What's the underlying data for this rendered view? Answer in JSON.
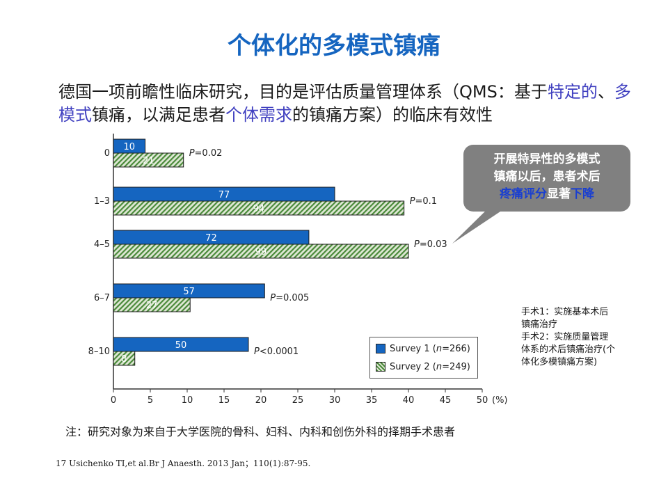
{
  "title": "个体化的多模式镇痛",
  "intro": {
    "p1": "德国一项前瞻性临床研究，目的是评估质量管理体系（QMS：基于",
    "h1": "特定的",
    "p2": "、",
    "h2": "多模式",
    "p3": "镇痛，以满足患者",
    "h3": "个体需求",
    "p4": "的镇痛方案）的临床有效性"
  },
  "callout": {
    "line1": "开展特异性的多模式",
    "line2": "镇痛以后，患者术后",
    "line3_blue": "疼痛评分",
    "line3_white": "显著",
    "line3_blue2": "下降"
  },
  "note": {
    "line1": "手术1：实施基本术后",
    "line2": "镇痛治疗",
    "line3": "手术2：实施质量管理",
    "line4": "体系的术后镇痛治疗(个",
    "line5": "体化多模镇痛方案)"
  },
  "footnote": "注：研究对象为来自于大学医院的骨科、妇科、内科和创伤外科的择期手术患者",
  "reference": "17 Usichenko TI,et al.Br J Anaesth. 2013 Jan；110(1):87-95.",
  "colors": {
    "accent": "#1565c0",
    "survey1": "#1565c0",
    "survey2": "#4a8a3a",
    "callout_bg": "#808080"
  },
  "chart_data": {
    "type": "bar",
    "orientation": "horizontal",
    "categories": [
      "0",
      "1–3",
      "4–5",
      "6–7",
      "8–10"
    ],
    "series": [
      {
        "name": "Survey 1 (n=266)",
        "values": [
          4.3,
          30,
          26.5,
          20.5,
          18.3
        ],
        "labels": [
          "10",
          "77",
          "72",
          "57",
          "50"
        ]
      },
      {
        "name": "Survey 2 (n=249)",
        "values": [
          9.5,
          39.4,
          40,
          10.4,
          2.9
        ],
        "labels": [
          "21",
          "94",
          "99",
          "27",
          "8"
        ]
      }
    ],
    "p_values": [
      "P=0.02",
      "P=0.1",
      "P=0.03",
      "P=0.005",
      "P<0.0001"
    ],
    "xticks": [
      "0",
      "5",
      "10",
      "15",
      "20",
      "25",
      "30",
      "35",
      "40",
      "45",
      "50"
    ],
    "xunit": "(%)",
    "xlim": [
      0,
      50
    ],
    "legend_position": "bottom-right",
    "legend": {
      "s1_prefix": "Survey 1 (",
      "s1_n": "n",
      "s1_suffix": "=266)",
      "s2_prefix": "Survey 2 (",
      "s2_n": "n",
      "s2_suffix": "=249)"
    }
  }
}
